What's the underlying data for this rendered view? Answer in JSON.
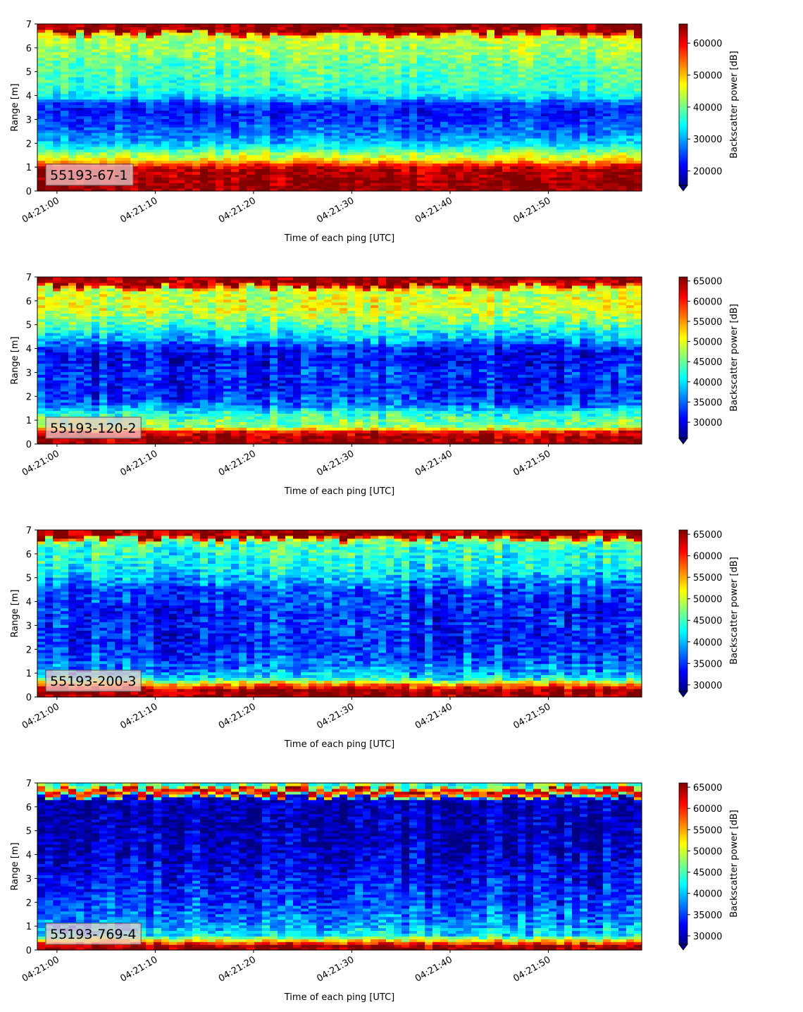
{
  "chart_data": [
    {
      "type": "heatmap",
      "label": "55193-67-1",
      "xlabel": "Time of each ping [UTC]",
      "ylabel": "Range [m]",
      "ylim": [
        0,
        7
      ],
      "yticks": [
        "0",
        "1",
        "2",
        "3",
        "4",
        "5",
        "6",
        "7"
      ],
      "xticks": [
        "04:21:00",
        "04:21:10",
        "04:21:20",
        "04:21:30",
        "04:21:40",
        "04:21:50"
      ],
      "xlim_seconds": [
        -2,
        59.5
      ],
      "colorbar": {
        "label": "Backscatter power [dB]",
        "min": 15500,
        "max": 66000,
        "extend": "min",
        "ticks": [
          "20000",
          "30000",
          "40000",
          "50000",
          "60000"
        ]
      },
      "range_profile": [
        [
          0.0,
          65000
        ],
        [
          0.25,
          65000
        ],
        [
          0.95,
          63000
        ],
        [
          1.15,
          56000
        ],
        [
          1.3,
          48000
        ],
        [
          1.6,
          42000
        ],
        [
          1.8,
          36000
        ],
        [
          2.1,
          31000
        ],
        [
          2.4,
          28000
        ],
        [
          2.9,
          25000
        ],
        [
          3.3,
          23000
        ],
        [
          3.7,
          25000
        ],
        [
          3.9,
          32000
        ],
        [
          4.3,
          37000
        ],
        [
          4.8,
          38000
        ],
        [
          5.3,
          39000
        ],
        [
          5.8,
          42000
        ],
        [
          6.3,
          43000
        ],
        [
          6.6,
          45000
        ],
        [
          6.75,
          65000
        ],
        [
          7.0,
          65000
        ]
      ]
    },
    {
      "type": "heatmap",
      "label": "55193-120-2",
      "xlabel": "Time of each ping [UTC]",
      "ylabel": "Range [m]",
      "ylim": [
        0,
        7
      ],
      "yticks": [
        "0",
        "1",
        "2",
        "3",
        "4",
        "5",
        "6",
        "7"
      ],
      "xticks": [
        "04:21:00",
        "04:21:10",
        "04:21:20",
        "04:21:30",
        "04:21:40",
        "04:21:50"
      ],
      "xlim_seconds": [
        -2,
        59.5
      ],
      "colorbar": {
        "label": "Backscatter power [dB]",
        "min": 26000,
        "max": 66000,
        "extend": "min",
        "ticks": [
          "30000",
          "35000",
          "40000",
          "45000",
          "50000",
          "55000",
          "60000",
          "65000"
        ]
      },
      "range_profile": [
        [
          0.0,
          65000
        ],
        [
          0.3,
          65000
        ],
        [
          0.55,
          60000
        ],
        [
          0.7,
          47000
        ],
        [
          1.0,
          45000
        ],
        [
          1.3,
          42000
        ],
        [
          1.6,
          36000
        ],
        [
          2.0,
          33000
        ],
        [
          2.5,
          32000
        ],
        [
          3.0,
          33000
        ],
        [
          3.5,
          31000
        ],
        [
          4.0,
          32000
        ],
        [
          4.4,
          38000
        ],
        [
          4.8,
          42000
        ],
        [
          5.2,
          46000
        ],
        [
          5.6,
          49000
        ],
        [
          6.0,
          50000
        ],
        [
          6.4,
          48000
        ],
        [
          6.6,
          50000
        ],
        [
          6.75,
          65000
        ],
        [
          7.0,
          65000
        ]
      ]
    },
    {
      "type": "heatmap",
      "label": "55193-200-3",
      "xlabel": "Time of each ping [UTC]",
      "ylabel": "Range [m]",
      "ylim": [
        0,
        7
      ],
      "yticks": [
        "0",
        "1",
        "2",
        "3",
        "4",
        "5",
        "6",
        "7"
      ],
      "xticks": [
        "04:21:00",
        "04:21:10",
        "04:21:20",
        "04:21:30",
        "04:21:40",
        "04:21:50"
      ],
      "xlim_seconds": [
        -2,
        59.5
      ],
      "colorbar": {
        "label": "Backscatter power [dB]",
        "min": 28500,
        "max": 66000,
        "extend": "min",
        "ticks": [
          "30000",
          "35000",
          "40000",
          "45000",
          "50000",
          "55000",
          "60000",
          "65000"
        ]
      },
      "range_profile": [
        [
          0.0,
          65000
        ],
        [
          0.3,
          65000
        ],
        [
          0.55,
          56000
        ],
        [
          0.8,
          42000
        ],
        [
          1.2,
          38000
        ],
        [
          1.6,
          36000
        ],
        [
          2.0,
          35000
        ],
        [
          2.5,
          34000
        ],
        [
          3.0,
          35000
        ],
        [
          3.5,
          34000
        ],
        [
          4.0,
          35000
        ],
        [
          4.5,
          36000
        ],
        [
          5.0,
          40000
        ],
        [
          5.5,
          43000
        ],
        [
          6.0,
          44000
        ],
        [
          6.4,
          44000
        ],
        [
          6.65,
          48000
        ],
        [
          6.8,
          65000
        ],
        [
          7.0,
          65000
        ]
      ]
    },
    {
      "type": "heatmap",
      "label": "55193-769-4",
      "xlabel": "Time of each ping [UTC]",
      "ylabel": "Range [m]",
      "ylim": [
        0,
        7
      ],
      "yticks": [
        "0",
        "1",
        "2",
        "3",
        "4",
        "5",
        "6",
        "7"
      ],
      "xticks": [
        "04:21:00",
        "04:21:10",
        "04:21:20",
        "04:21:30",
        "04:21:40",
        "04:21:50"
      ],
      "xlim_seconds": [
        -2,
        59.5
      ],
      "colorbar": {
        "label": "Backscatter power [dB]",
        "min": 28000,
        "max": 66000,
        "extend": "min",
        "ticks": [
          "30000",
          "35000",
          "40000",
          "45000",
          "50000",
          "55000",
          "60000",
          "65000"
        ]
      },
      "range_profile": [
        [
          0.0,
          65000
        ],
        [
          0.2,
          65000
        ],
        [
          0.35,
          56000
        ],
        [
          0.6,
          42000
        ],
        [
          1.0,
          39000
        ],
        [
          1.5,
          37000
        ],
        [
          2.0,
          35000
        ],
        [
          2.5,
          34000
        ],
        [
          3.0,
          33000
        ],
        [
          3.5,
          32000
        ],
        [
          4.0,
          31000
        ],
        [
          5.0,
          30000
        ],
        [
          6.0,
          30000
        ],
        [
          6.45,
          31000
        ],
        [
          6.6,
          58000
        ],
        [
          6.8,
          63000
        ],
        [
          6.95,
          44000
        ],
        [
          7.0,
          44000
        ]
      ]
    }
  ],
  "colormap": "jet",
  "colors": {
    "label_box_bg": "#f2c9c9",
    "label_box_border": "#555555",
    "axis": "#000000"
  }
}
